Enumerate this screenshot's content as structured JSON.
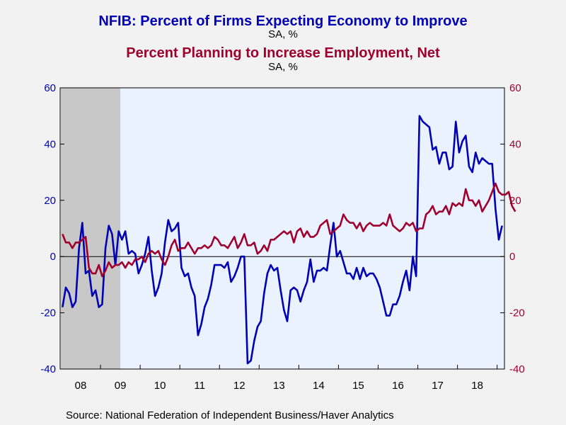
{
  "header": {
    "title1": "NFIB: Percent of Firms Expecting Economy to Improve",
    "unit1": "SA, %",
    "title2": "Percent Planning to Increase Employment, Net",
    "unit2": "SA, %"
  },
  "footer": {
    "source": "Source:  National Federation of Independent Business/Haver Analytics"
  },
  "colors": {
    "series1": "#0000b4",
    "series2": "#a0002d",
    "plot_bg": "#eaf2ff",
    "recession": "#c8c8c8",
    "page_bg": "#f2f2f2"
  },
  "chart_data": {
    "type": "line",
    "x_start": "2008-01",
    "frequency": "monthly",
    "x_tick_labels": [
      "08",
      "09",
      "10",
      "11",
      "12",
      "13",
      "14",
      "15",
      "16",
      "17",
      "18"
    ],
    "left_axis": {
      "ylim": [
        -40,
        60
      ],
      "ticks": [
        "60",
        "40",
        "20",
        "0",
        "-20",
        "-40"
      ]
    },
    "right_axis": {
      "ylim": [
        -40,
        60
      ],
      "ticks": [
        "60",
        "40",
        "20",
        "0",
        "-20",
        "-40"
      ]
    },
    "recession": {
      "start": "2008-01",
      "end": "2009-06"
    },
    "grid": false,
    "series": [
      {
        "name": "NFIB: Percent of Firms Expecting Economy to Improve",
        "axis": "left",
        "values": [
          -18,
          -11,
          -13,
          -18,
          -16,
          3,
          12,
          -6,
          -5,
          -14,
          -12,
          -18,
          -17,
          3,
          11,
          8,
          -3,
          9,
          6,
          9,
          1,
          2,
          1,
          -6,
          -3,
          1,
          7,
          -5,
          -14,
          -11,
          -6,
          5,
          13,
          9,
          10,
          12,
          -4,
          -7,
          -6,
          -11,
          -14,
          -28,
          -24,
          -18,
          -15,
          -10,
          -3,
          -3,
          -3,
          -4,
          -2,
          -9,
          -7,
          -4,
          0,
          0,
          -38,
          -37,
          -30,
          -25,
          -23,
          -13,
          -6,
          -3,
          -5,
          -4,
          -12,
          -19,
          -23,
          -12,
          -11,
          -12,
          -16,
          -12,
          -9,
          -1,
          -9,
          -5,
          -5,
          -4,
          -5,
          4,
          12,
          0,
          2,
          -2,
          -6,
          -6,
          -8,
          -4,
          -8,
          -4,
          -7,
          -6,
          -6,
          -8,
          -11,
          -16,
          -21,
          -21,
          -17,
          -17,
          -14,
          -9,
          -5,
          -12,
          0,
          -7,
          50,
          48,
          47,
          46,
          38,
          39,
          33,
          37,
          37,
          31,
          32,
          48,
          37,
          41,
          43,
          32,
          30,
          37,
          33,
          35,
          34,
          33,
          33,
          17,
          6,
          11
        ]
      },
      {
        "name": "Percent Planning to Increase Employment, Net",
        "axis": "right",
        "values": [
          8,
          5,
          5,
          3,
          5,
          5,
          6,
          7,
          -4,
          -6,
          -6,
          -3,
          -7,
          -5,
          -2,
          -4,
          -3,
          -3,
          -2,
          -4,
          -2,
          -3,
          -1,
          -1,
          0,
          -2,
          1,
          2,
          1,
          2,
          -1,
          -3,
          0,
          4,
          6,
          2,
          3,
          3,
          5,
          3,
          1,
          3,
          3,
          4,
          3,
          4,
          7,
          6,
          4,
          4,
          3,
          5,
          7,
          3,
          5,
          8,
          4,
          4,
          5,
          1,
          2,
          4,
          2,
          6,
          6,
          7,
          8,
          9,
          8,
          9,
          5,
          9,
          10,
          7,
          9,
          7,
          7,
          8,
          11,
          12,
          13,
          8,
          9,
          10,
          11,
          15,
          13,
          12,
          12,
          10,
          12,
          9,
          11,
          12,
          11,
          11,
          11,
          12,
          11,
          15,
          11,
          10,
          9,
          10,
          12,
          11,
          12,
          9,
          10,
          10,
          15,
          16,
          18,
          15,
          16,
          16,
          18,
          15,
          19,
          18,
          19,
          18,
          24,
          20,
          20,
          18,
          20,
          16,
          18,
          20,
          23,
          26,
          23,
          22,
          22,
          23,
          18,
          16
        ]
      }
    ]
  }
}
